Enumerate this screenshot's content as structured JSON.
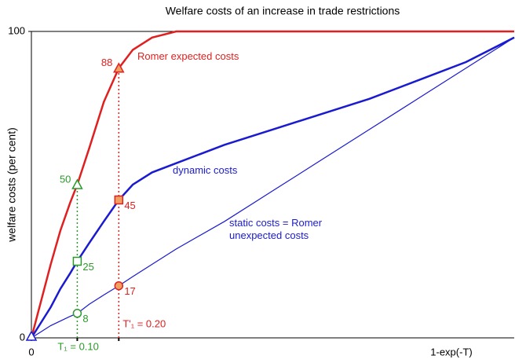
{
  "chart_data": {
    "type": "line",
    "title": "Welfare costs of an increase in trade restrictions",
    "ylabel": "welfare costs (per cent)",
    "xlabel": "1-exp(-T)",
    "xlim": [
      0,
      1
    ],
    "ylim": [
      0,
      100
    ],
    "xticks": [
      0
    ],
    "yticks": [
      0,
      100
    ],
    "x": [
      0,
      0.02,
      0.04,
      0.06,
      0.08,
      0.095,
      0.12,
      0.15,
      0.181,
      0.21,
      0.25,
      0.3,
      0.4,
      0.5,
      0.6,
      0.7,
      0.8,
      0.9,
      1.0
    ],
    "series": [
      {
        "name": "Romer expected costs",
        "color": "#e02020",
        "width": 2.5,
        "marker": "triangle",
        "values": [
          0,
          12,
          24,
          35,
          44,
          50,
          62,
          77,
          88,
          94,
          98,
          100,
          100,
          100,
          100,
          100,
          100,
          100,
          100
        ]
      },
      {
        "name": "dynamic costs",
        "color": "#1a1ad0",
        "width": 2.5,
        "marker": "square",
        "values": [
          0,
          5,
          10,
          16,
          21,
          25,
          31,
          38,
          45,
          50,
          54,
          57,
          63,
          68,
          73,
          78,
          84,
          90,
          98
        ]
      },
      {
        "name": "static costs = Romer unexpected costs",
        "color": "#1a1ad0",
        "width": 1.2,
        "marker": "circle",
        "values": [
          0,
          2,
          4,
          5.5,
          7,
          8,
          11,
          14,
          17,
          20,
          24,
          29,
          38,
          48,
          58,
          68,
          78,
          88,
          98
        ]
      }
    ],
    "markers": [
      {
        "label": "T₁ = 0.10",
        "x": 0.095,
        "color": "#2a9a2a",
        "values": [
          50,
          25,
          8
        ]
      },
      {
        "label": "T'₁ = 0.20",
        "x": 0.181,
        "color": "#e02020",
        "values": [
          88,
          45,
          17
        ]
      }
    ]
  }
}
